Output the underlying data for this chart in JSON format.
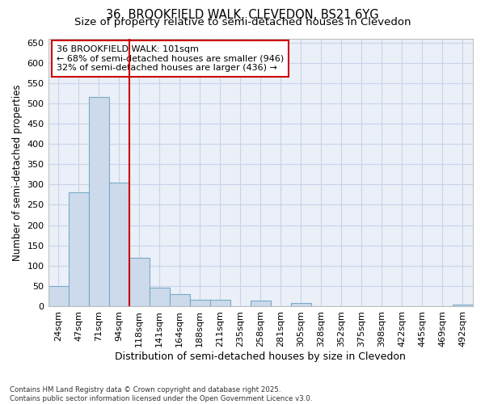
{
  "title_line1": "36, BROOKFIELD WALK, CLEVEDON, BS21 6YG",
  "title_line2": "Size of property relative to semi-detached houses in Clevedon",
  "xlabel": "Distribution of semi-detached houses by size in Clevedon",
  "ylabel": "Number of semi-detached properties",
  "categories": [
    "24sqm",
    "47sqm",
    "71sqm",
    "94sqm",
    "118sqm",
    "141sqm",
    "164sqm",
    "188sqm",
    "211sqm",
    "235sqm",
    "258sqm",
    "281sqm",
    "305sqm",
    "328sqm",
    "352sqm",
    "375sqm",
    "398sqm",
    "422sqm",
    "445sqm",
    "469sqm",
    "492sqm"
  ],
  "values": [
    50,
    280,
    515,
    305,
    120,
    45,
    30,
    15,
    15,
    0,
    13,
    0,
    8,
    0,
    0,
    0,
    0,
    0,
    0,
    0,
    3
  ],
  "bar_color": "#ccdaeb",
  "bar_edge_color": "#7aaac8",
  "vline_color": "#cc0000",
  "annotation_text": "36 BROOKFIELD WALK: 101sqm\n← 68% of semi-detached houses are smaller (946)\n32% of semi-detached houses are larger (436) →",
  "annotation_box_color": "#ffffff",
  "annotation_box_edge": "#cc0000",
  "ylim": [
    0,
    660
  ],
  "yticks": [
    0,
    50,
    100,
    150,
    200,
    250,
    300,
    350,
    400,
    450,
    500,
    550,
    600,
    650
  ],
  "grid_color": "#c8d4e8",
  "bg_color": "#eaeff8",
  "footer": "Contains HM Land Registry data © Crown copyright and database right 2025.\nContains public sector information licensed under the Open Government Licence v3.0.",
  "title_fontsize": 10.5,
  "subtitle_fontsize": 9.5,
  "annot_fontsize": 8,
  "tick_fontsize": 8,
  "ylabel_fontsize": 8.5,
  "xlabel_fontsize": 9
}
